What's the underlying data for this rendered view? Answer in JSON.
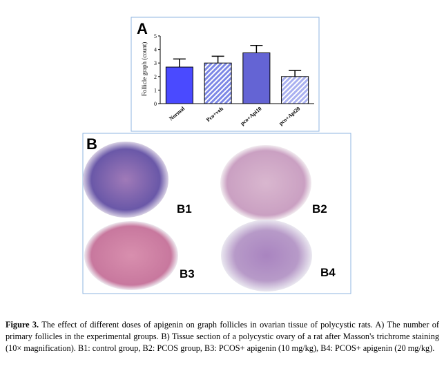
{
  "chart_data": {
    "type": "bar",
    "panel_label": "A",
    "y_label": "Follicle graph (count)",
    "categories": [
      "Normal",
      "Pco+veh",
      "pco+Api10",
      "pco+Api20"
    ],
    "values": [
      2.7,
      3.0,
      3.75,
      2.0
    ],
    "errors": [
      0.6,
      0.5,
      0.55,
      0.45
    ],
    "colors": [
      "#4a4aff",
      "#7c87e6",
      "#6464d4",
      "#a9b0f0"
    ],
    "hatched": [
      false,
      true,
      false,
      true
    ],
    "ylim": [
      0,
      5
    ],
    "yticks": [
      0,
      1,
      2,
      3,
      4,
      5
    ]
  },
  "panel_b": {
    "label": "B",
    "images": [
      {
        "label": "B1"
      },
      {
        "label": "B2"
      },
      {
        "label": "B3"
      },
      {
        "label": "B4"
      }
    ]
  },
  "caption": {
    "label": "Figure 3.",
    "text": " The effect of different doses of apigenin on graph follicles in ovarian tissue of polycystic rats. A) The number of primary follicles in the experimental groups. B) Tissue section of a polycystic ovary of a rat after Masson's trichrome staining (10× magnification). B1: control group, B2: PCOS group, B3: PCOS+ apigenin (10 mg/kg), B4: PCOS+ apigenin (20 mg/kg)."
  }
}
